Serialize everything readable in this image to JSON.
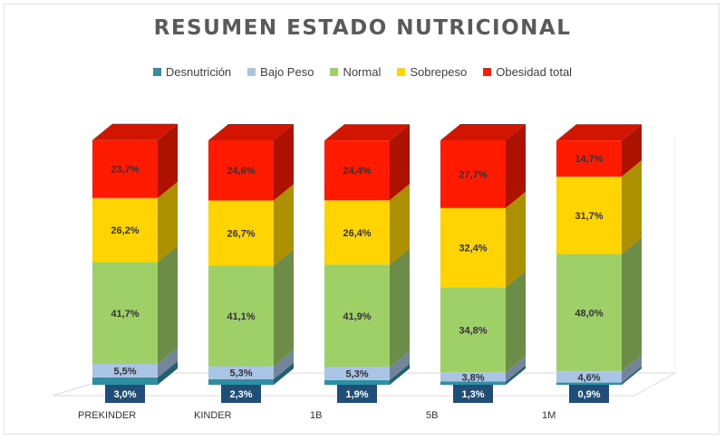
{
  "chart_data": {
    "type": "bar",
    "stacked": true,
    "three_d": true,
    "title": "RESUMEN ESTADO NUTRICIONAL",
    "legend_position": "top",
    "categories": [
      "PREKINDER",
      "KINDER",
      "1B",
      "5B",
      "1M"
    ],
    "series": [
      {
        "name": "Desnutrición",
        "color": "#2e8fa3",
        "values": [
          3.0,
          2.3,
          1.9,
          1.3,
          0.9
        ],
        "labels": [
          "3,0%",
          "2,3%",
          "1,9%",
          "1,3%",
          "0,9%"
        ]
      },
      {
        "name": "Bajo Peso",
        "color": "#a9c4e4",
        "values": [
          5.5,
          5.3,
          5.3,
          3.8,
          4.6
        ],
        "labels": [
          "5,5%",
          "5,3%",
          "5,3%",
          "3,8%",
          "4,6%"
        ]
      },
      {
        "name": "Normal",
        "color": "#9fd068",
        "values": [
          41.7,
          41.1,
          41.9,
          34.8,
          48.0
        ],
        "labels": [
          "41,7%",
          "41,1%",
          "41,9%",
          "34,8%",
          "48,0%"
        ]
      },
      {
        "name": "Sobrepeso",
        "color": "#ffd400",
        "values": [
          26.2,
          26.7,
          26.4,
          32.4,
          31.7
        ],
        "labels": [
          "26,2%",
          "26,7%",
          "26,4%",
          "32,4%",
          "31,7%"
        ]
      },
      {
        "name": "Obesidad total",
        "color": "#ff1a00",
        "values": [
          23.7,
          24.6,
          24.4,
          27.7,
          14.7
        ],
        "labels": [
          "23,7%",
          "24,6%",
          "24,4%",
          "27,7%",
          "14,7%"
        ]
      }
    ],
    "grid": false
  }
}
